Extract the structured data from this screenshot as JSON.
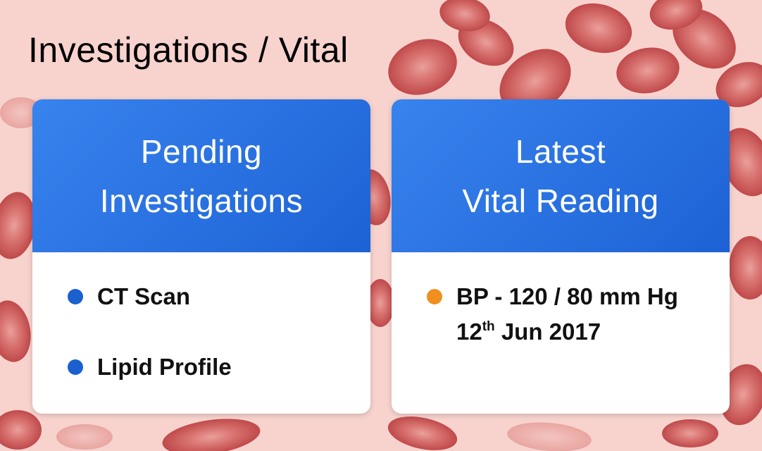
{
  "page": {
    "title": "Investigations / Vital"
  },
  "pending_card": {
    "title_line1": "Pending",
    "title_line2": "Investigations",
    "items": [
      {
        "label": "CT Scan"
      },
      {
        "label": "Lipid Profile"
      }
    ]
  },
  "vital_card": {
    "title_line1": "Latest",
    "title_line2": "Vital Reading",
    "reading": "BP - 120 / 80 mm Hg",
    "date_day": "12",
    "date_suffix": "th",
    "date_rest": "Jun 2017"
  },
  "colors": {
    "header_start": "#3883ee",
    "header_end": "#1d62d5",
    "pending_dot": "#1a60cf",
    "vital_dot": "#ef8f20",
    "background": "#f8d3ce",
    "blood_cell": "#cf4a4a"
  }
}
